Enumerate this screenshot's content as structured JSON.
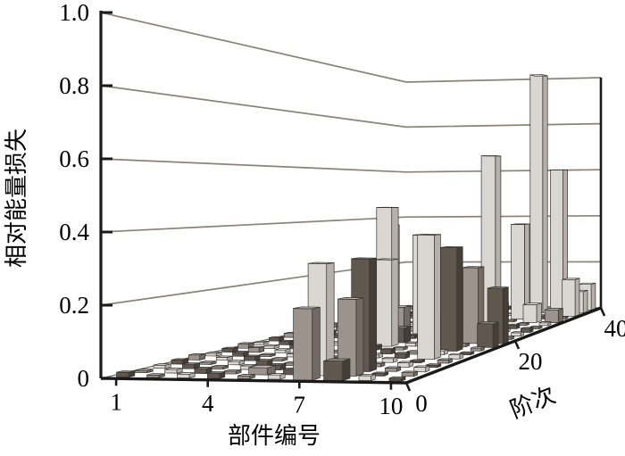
{
  "chart_data": {
    "type": "bar",
    "subtype": "bar3d",
    "title": "",
    "zlabel": "相对能量损失",
    "xlabel": "部件编号",
    "ylabel": "阶次",
    "z_ticks": [
      {
        "label": "1.0",
        "value": 1.0
      },
      {
        "label": "0.8",
        "value": 0.8
      },
      {
        "label": "0.6",
        "value": 0.6
      },
      {
        "label": "0.4",
        "value": 0.4
      },
      {
        "label": "0.2",
        "value": 0.2
      },
      {
        "label": "0",
        "value": 0.0
      }
    ],
    "x_ticks": [
      {
        "label": "1",
        "value": 1
      },
      {
        "label": "4",
        "value": 4
      },
      {
        "label": "7",
        "value": 7
      },
      {
        "label": "10",
        "value": 10
      }
    ],
    "y_ticks": [
      {
        "label": "0",
        "value": 0
      },
      {
        "label": "20",
        "value": 20
      },
      {
        "label": "40",
        "value": 40
      }
    ],
    "x_range": [
      1,
      10
    ],
    "y_range": [
      0,
      40
    ],
    "z_range": [
      0,
      1
    ],
    "grid": {
      "components": 10,
      "order_slots": 20,
      "order_step": 2
    },
    "legend": null,
    "bars": [
      {
        "component": 7,
        "order": 2,
        "value": 0.2,
        "shade": "mid"
      },
      {
        "component": 7,
        "order": 4,
        "value": 0.32,
        "shade": "light"
      },
      {
        "component": 8,
        "order": 2,
        "value": 0.055,
        "shade": "dark"
      },
      {
        "component": 8,
        "order": 4,
        "value": 0.22,
        "shade": "mid"
      },
      {
        "component": 8,
        "order": 6,
        "value": 0.33,
        "shade": "dark"
      },
      {
        "component": 5,
        "order": 4,
        "value": 0.02,
        "shade": "mid"
      },
      {
        "component": 4,
        "order": 24,
        "value": 0.09,
        "shade": "mid"
      },
      {
        "component": 4,
        "order": 26,
        "value": 0.39,
        "shade": "light"
      },
      {
        "component": 2,
        "order": 28,
        "value": 0.05,
        "shade": "light"
      },
      {
        "component": 3,
        "order": 28,
        "value": 0.035,
        "shade": "dark"
      },
      {
        "component": 5,
        "order": 22,
        "value": 0.46,
        "shade": "light"
      },
      {
        "component": 5,
        "order": 24,
        "value": 0.1,
        "shade": "mid"
      },
      {
        "component": 6,
        "order": 18,
        "value": 0.29,
        "shade": "light"
      },
      {
        "component": 6,
        "order": 20,
        "value": 0.05,
        "shade": "dark"
      },
      {
        "component": 6,
        "order": 24,
        "value": 0.36,
        "shade": "light"
      },
      {
        "component": 9,
        "order": 12,
        "value": 0.39,
        "shade": "light"
      },
      {
        "component": 9,
        "order": 16,
        "value": 0.34,
        "shade": "dark"
      },
      {
        "component": 9,
        "order": 20,
        "value": 0.26,
        "shade": "mid"
      },
      {
        "component": 10,
        "order": 18,
        "value": 0.08,
        "shade": "dark"
      },
      {
        "component": 10,
        "order": 20,
        "value": 0.19,
        "shade": "dark"
      },
      {
        "component": 8,
        "order": 28,
        "value": 0.65,
        "shade": "light"
      },
      {
        "component": 7,
        "order": 32,
        "value": 0.1,
        "shade": "light"
      },
      {
        "component": 7,
        "order": 34,
        "value": 0.06,
        "shade": "light"
      },
      {
        "component": 8,
        "order": 34,
        "value": 0.38,
        "shade": "light"
      },
      {
        "component": 9,
        "order": 32,
        "value": 0.07,
        "shade": "light"
      },
      {
        "component": 10,
        "order": 32,
        "value": 0.05,
        "shade": "mid"
      },
      {
        "component": 8,
        "order": 38,
        "value": 1.0,
        "shade": "light"
      },
      {
        "component": 9,
        "order": 38,
        "value": 0.6,
        "shade": "light"
      },
      {
        "component": 10,
        "order": 36,
        "value": 0.15,
        "shade": "light"
      },
      {
        "component": 10,
        "order": 38,
        "value": 0.09,
        "shade": "light"
      },
      {
        "component": 10,
        "order": 40,
        "value": 0.11,
        "shade": "light"
      }
    ],
    "stub_base_value": 0.01
  },
  "colors": {
    "background": "#ffffff",
    "axis": "#1a1a1a",
    "grid": "#8b8179",
    "floor_edge": "#6b655f",
    "bar_stroke": "#35312d",
    "shades": {
      "light": {
        "top": "#edebe8",
        "front": "#dad6d1",
        "side": "#b6b0aa"
      },
      "mid": {
        "top": "#bdb5ae",
        "front": "#9c948c",
        "side": "#716a64"
      },
      "dark": {
        "top": "#8f867f",
        "front": "#60584f",
        "side": "#453e38"
      }
    }
  }
}
